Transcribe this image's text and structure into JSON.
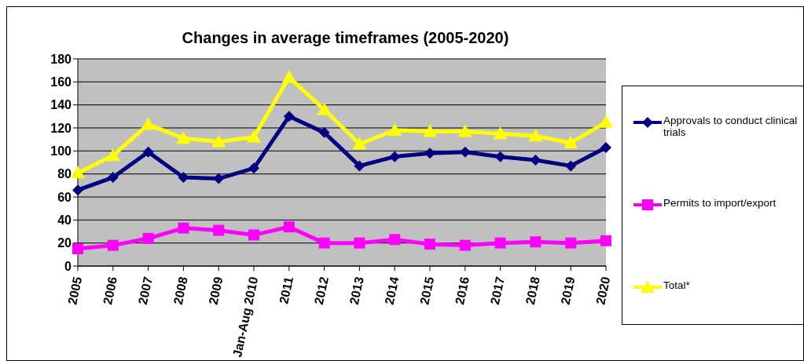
{
  "chart_data": {
    "type": "line",
    "title": "Changes in average timeframes (2005-2020)",
    "categories": [
      "2005",
      "2006",
      "2007",
      "2008",
      "2009",
      "Jan-Aug 2010",
      "2011",
      "2012",
      "2013",
      "2014",
      "2015",
      "2016",
      "2017",
      "2018",
      "2019",
      "2020"
    ],
    "series": [
      {
        "name": "Approvals to conduct clinical trials",
        "color": "#000080",
        "marker": "diamond",
        "values": [
          66,
          77,
          99,
          77,
          76,
          85,
          130,
          116,
          87,
          95,
          98,
          99,
          95,
          92,
          87,
          103
        ]
      },
      {
        "name": "Permits to import/export",
        "color": "#ff00ff",
        "marker": "square",
        "values": [
          15,
          18,
          24,
          33,
          31,
          27,
          34,
          20,
          20,
          23,
          19,
          18,
          20,
          21,
          20,
          22
        ]
      },
      {
        "name": "Total*",
        "color": "#ffff00",
        "marker": "triangle",
        "values": [
          81,
          96,
          123,
          111,
          108,
          112,
          164,
          136,
          106,
          118,
          117,
          117,
          115,
          113,
          107,
          125
        ]
      }
    ],
    "ylim": [
      0,
      180
    ],
    "yticks": [
      0,
      20,
      40,
      60,
      80,
      100,
      120,
      140,
      160,
      180
    ],
    "grid": "y",
    "legend": "right",
    "line_style": "solid"
  }
}
